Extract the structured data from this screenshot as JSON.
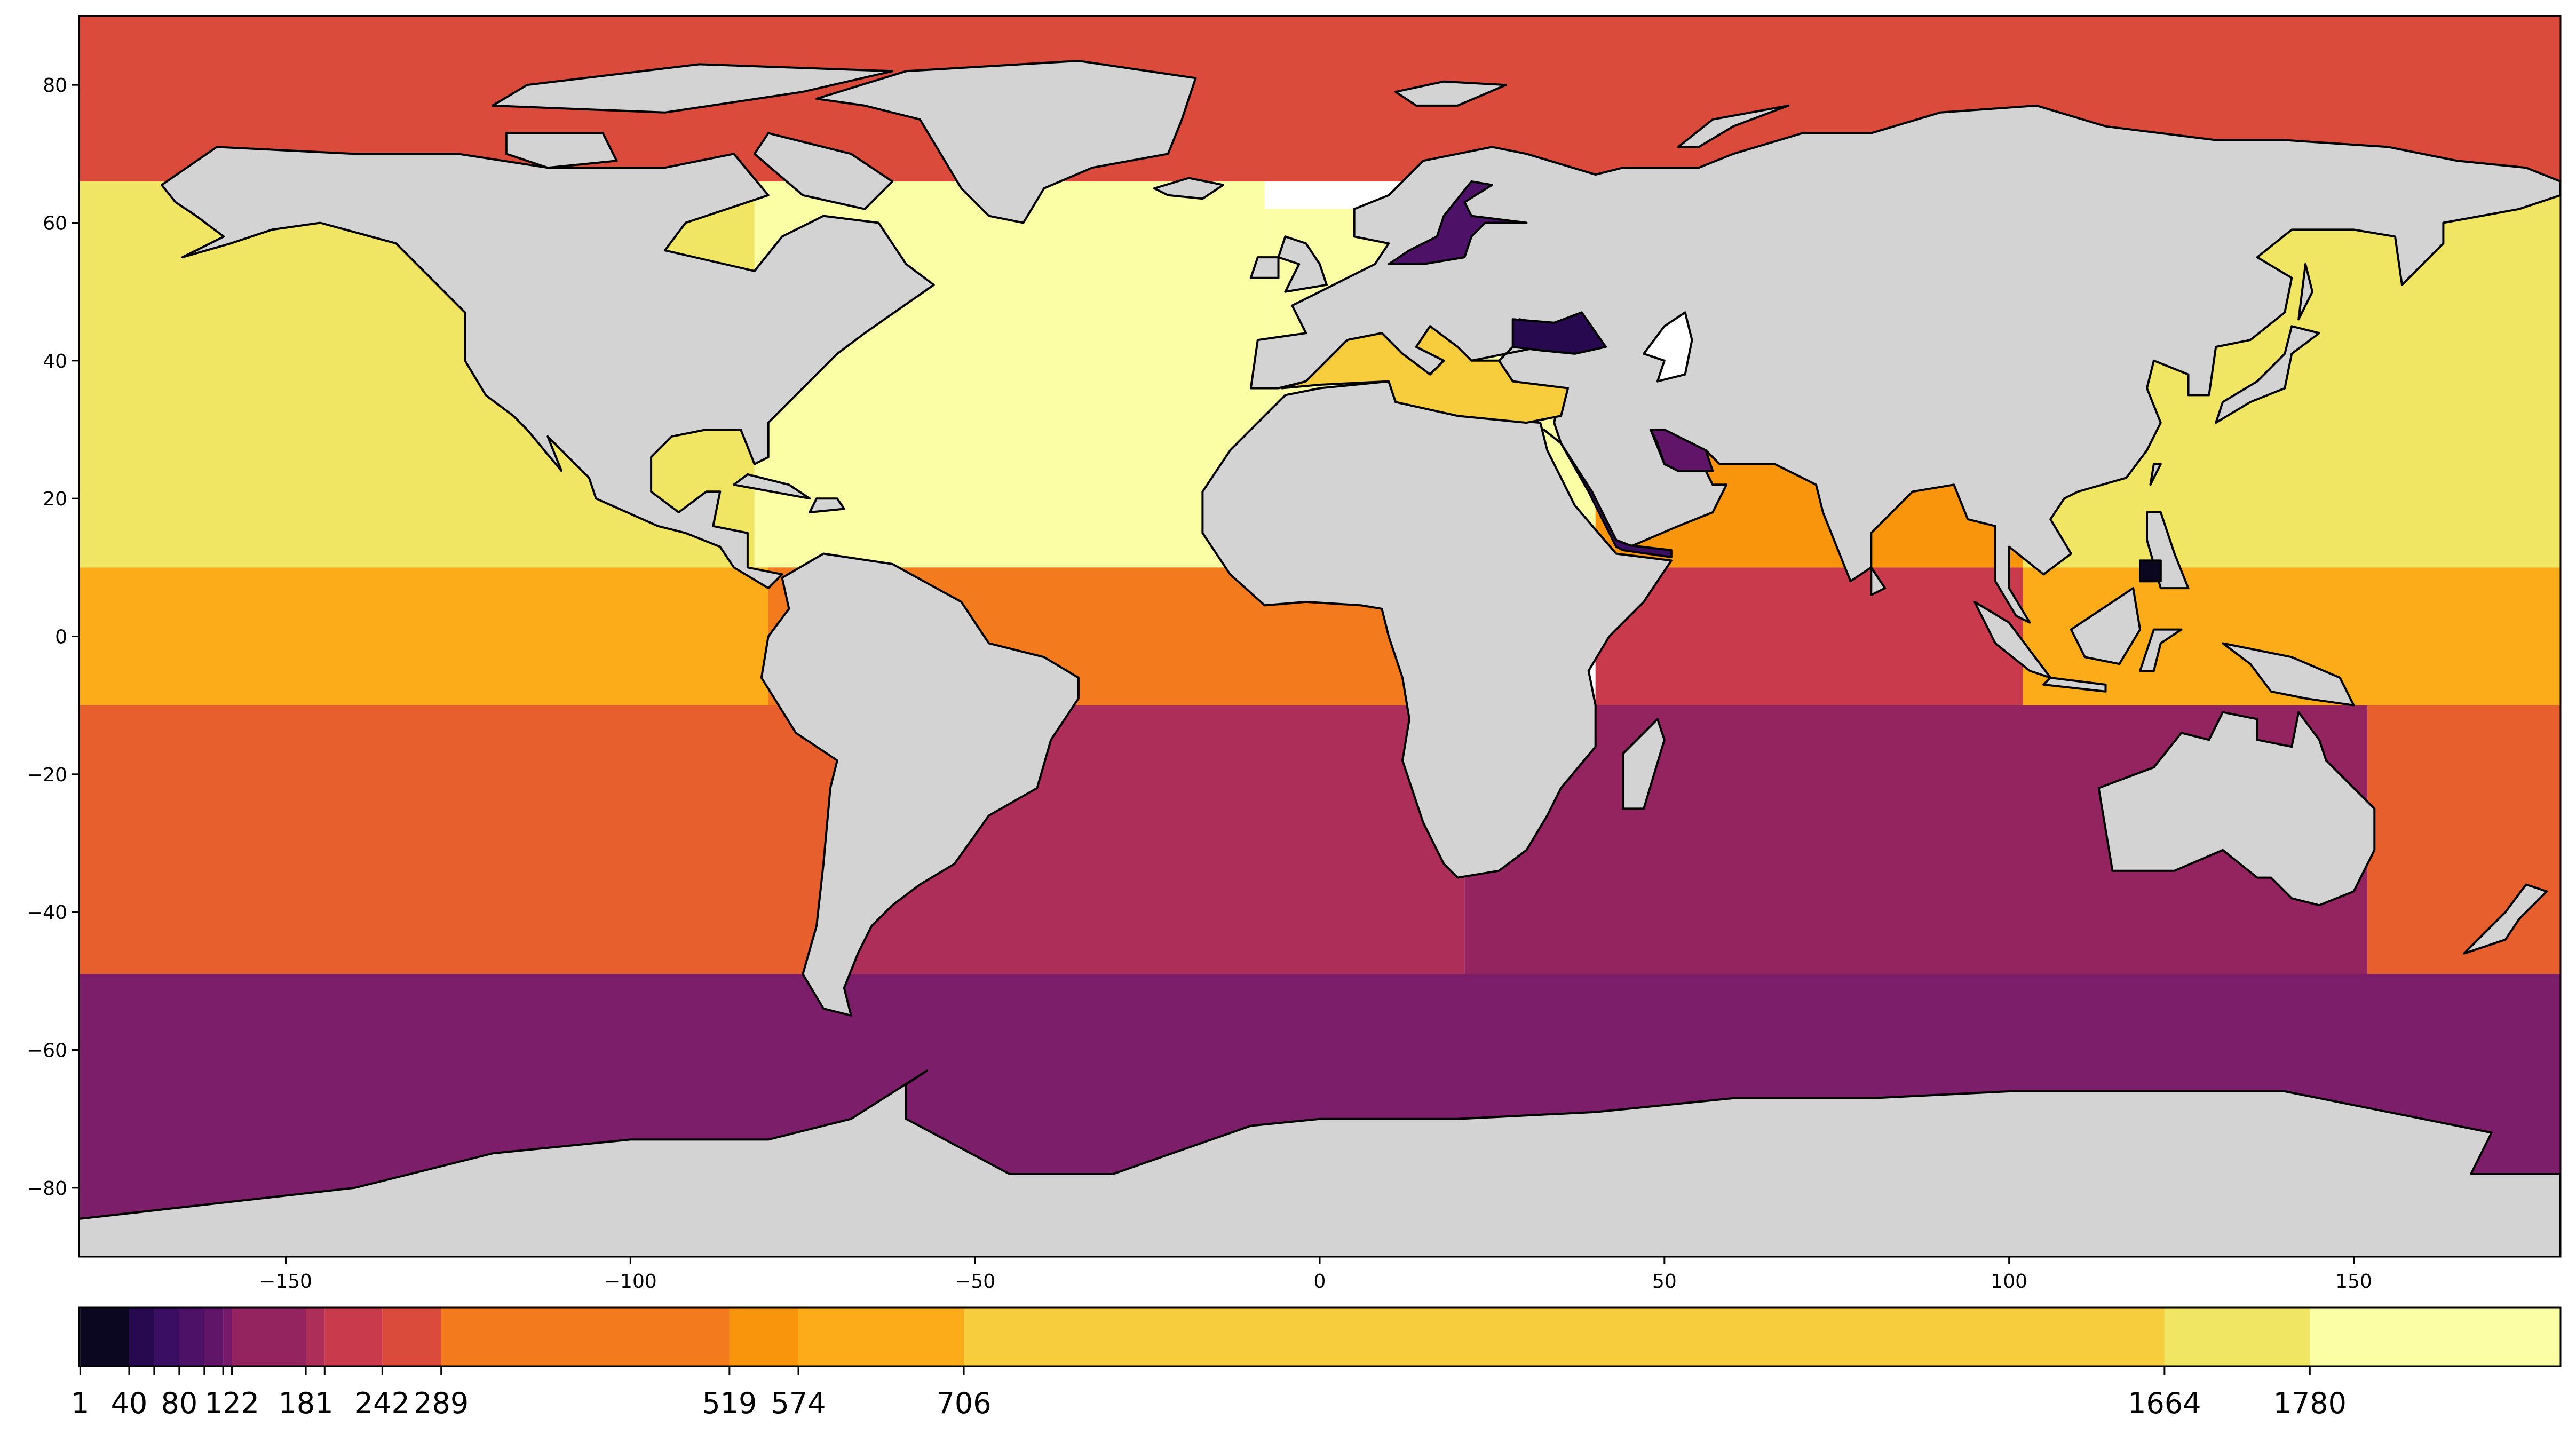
{
  "map": {
    "x_ticks": [
      "−150",
      "−100",
      "−50",
      "0",
      "50",
      "100",
      "150"
    ],
    "y_ticks": [
      "80",
      "60",
      "40",
      "20",
      "0",
      "−20",
      "−40",
      "−60",
      "−80"
    ],
    "land_color": "#d3d3d3",
    "coastline_color": "#000000"
  },
  "chart_data": {
    "type": "heatmap",
    "title": "",
    "xlabel": "",
    "ylabel": "",
    "xlim": [
      -180,
      180
    ],
    "ylim": [
      -90,
      90
    ],
    "x_ticks": [
      -150,
      -100,
      -50,
      0,
      50,
      100,
      150
    ],
    "y_ticks": [
      80,
      60,
      40,
      20,
      0,
      -20,
      -40,
      -60,
      -80
    ],
    "colormap": "inferno",
    "colorbar": {
      "orientation": "horizontal",
      "tick_values": [
        1,
        40,
        80,
        122,
        181,
        242,
        289,
        519,
        574,
        706,
        1664,
        1780
      ],
      "tick_labels": [
        "1",
        "40",
        "80",
        "122",
        "181",
        "242",
        "289",
        "519",
        "574",
        "706",
        "1664",
        "1780"
      ],
      "segments": [
        {
          "from": 0,
          "to": 1,
          "color": "#0c0720"
        },
        {
          "from": 1,
          "to": 40,
          "color": "#0c0720"
        },
        {
          "from": 40,
          "to": 60,
          "color": "#26094e"
        },
        {
          "from": 60,
          "to": 80,
          "color": "#3a0e62"
        },
        {
          "from": 80,
          "to": 100,
          "color": "#4e1168"
        },
        {
          "from": 100,
          "to": 115,
          "color": "#601569"
        },
        {
          "from": 115,
          "to": 122,
          "color": "#751a6b"
        },
        {
          "from": 122,
          "to": 181,
          "color": "#94245f"
        },
        {
          "from": 181,
          "to": 196,
          "color": "#ad2e58"
        },
        {
          "from": 196,
          "to": 242,
          "color": "#c93a4c"
        },
        {
          "from": 242,
          "to": 289,
          "color": "#db4b3c"
        },
        {
          "from": 289,
          "to": 519,
          "color": "#f37b1e"
        },
        {
          "from": 519,
          "to": 574,
          "color": "#f8950d"
        },
        {
          "from": 574,
          "to": 706,
          "color": "#fcac19"
        },
        {
          "from": 706,
          "to": 1664,
          "color": "#f7cd3e"
        },
        {
          "from": 1664,
          "to": 1780,
          "color": "#f1e564"
        },
        {
          "from": 1780,
          "to": 1980,
          "color": "#fbfea4"
        }
      ]
    },
    "regions": [
      {
        "lon": [
          -180,
          180
        ],
        "lat": [
          66,
          90
        ],
        "value": 242,
        "color": "#db4b3c"
      },
      {
        "lon": [
          -180,
          -82
        ],
        "lat": [
          10,
          66
        ],
        "value": 1664,
        "color": "#f1e564"
      },
      {
        "lon": [
          -82,
          -8
        ],
        "lat": [
          10,
          66
        ],
        "value": 1780,
        "color": "#fbfea4"
      },
      {
        "lon": [
          -8,
          40
        ],
        "lat": [
          10,
          62
        ],
        "value": 1780,
        "color": "#fbfea4"
      },
      {
        "lon": [
          102,
          180
        ],
        "lat": [
          10,
          66
        ],
        "value": 1664,
        "color": "#f1e564"
      },
      {
        "lon": [
          -180,
          -80
        ],
        "lat": [
          -10,
          10
        ],
        "value": 574,
        "color": "#fcac19"
      },
      {
        "lon": [
          -80,
          20
        ],
        "lat": [
          -10,
          10
        ],
        "value": 289,
        "color": "#f37b1e"
      },
      {
        "lon": [
          40,
          102
        ],
        "lat": [
          10,
          30
        ],
        "value": 519,
        "color": "#f8950d"
      },
      {
        "lon": [
          40,
          102
        ],
        "lat": [
          -10,
          10
        ],
        "value": 196,
        "color": "#c93a4c"
      },
      {
        "lon": [
          102,
          180
        ],
        "lat": [
          -10,
          10
        ],
        "value": 574,
        "color": "#fcac19"
      },
      {
        "lon": [
          -180,
          -70
        ],
        "lat": [
          -49,
          -10
        ],
        "value": 242,
        "color": "#e85f2e"
      },
      {
        "lon": [
          -70,
          21
        ],
        "lat": [
          -49,
          -10
        ],
        "value": 181,
        "color": "#ad2e58"
      },
      {
        "lon": [
          21,
          152
        ],
        "lat": [
          -49,
          -10
        ],
        "value": 122,
        "color": "#94245f"
      },
      {
        "lon": [
          152,
          180
        ],
        "lat": [
          -49,
          -10
        ],
        "value": 242,
        "color": "#e85f2e"
      },
      {
        "lon": [
          -180,
          180
        ],
        "lat": [
          -90,
          -49
        ],
        "value": 115,
        "color": "#7d1e6a"
      },
      {
        "name": "Mediterranean",
        "value": 706,
        "color": "#f7cd3e"
      },
      {
        "name": "Black Sea",
        "value": 40,
        "color": "#26094e"
      },
      {
        "name": "Baltic Sea",
        "value": 80,
        "color": "#4e1168"
      },
      {
        "name": "Red Sea",
        "value": 60,
        "color": "#3a0e62"
      },
      {
        "name": "Persian Gulf",
        "value": 100,
        "color": "#601569"
      },
      {
        "name": "Sulu Sea",
        "value": 1,
        "color": "#0c0720"
      },
      {
        "name": "Caspian Sea",
        "value": null,
        "color": "#ffffff"
      }
    ]
  }
}
